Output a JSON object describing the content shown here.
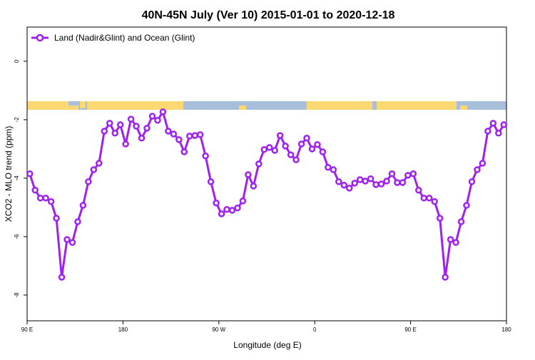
{
  "chart_data": {
    "type": "line",
    "title": "40N-45N July (Ver 10)   2015-01-01 to 2020-12-18",
    "x_label": "Longitude (deg E)",
    "y_label": "XCO2 - MLO trend (ppm)",
    "x": [
      92.5,
      97.5,
      102.5,
      107.5,
      112.5,
      117.5,
      122.5,
      127.5,
      132.5,
      137.5,
      142.5,
      147.5,
      152.5,
      157.5,
      162.5,
      167.5,
      172.5,
      177.5,
      182.5,
      187.5,
      192.5,
      197.5,
      202.5,
      207.5,
      212.5,
      217.5,
      222.5,
      227.5,
      232.5,
      237.5,
      242.5,
      247.5,
      252.5,
      257.5,
      262.5,
      267.5,
      272.5,
      277.5,
      282.5,
      287.5,
      292.5,
      297.5,
      302.5,
      307.5,
      312.5,
      317.5,
      322.5,
      327.5,
      332.5,
      337.5,
      342.5,
      347.5,
      352.5,
      357.5,
      362.5,
      367.5,
      372.5,
      377.5,
      382.5,
      387.5,
      392.5,
      397.5,
      402.5,
      407.5,
      412.5,
      417.5,
      422.5,
      427.5,
      432.5,
      437.5,
      442.5,
      447.5,
      452.5,
      457.5,
      462.5,
      467.5,
      472.5,
      477.5,
      482.5,
      487.5,
      492.5,
      497.5,
      502.5,
      507.5,
      512.5,
      517.5,
      522.5,
      527.5,
      532.5,
      537.5
    ],
    "series": [
      {
        "name": "Land (Nadir&Glint) and Ocean (Glint)",
        "color": "#a020f0",
        "values": [
          -3.85,
          -4.41,
          -4.68,
          -4.68,
          -4.8,
          -5.37,
          -7.39,
          -6.1,
          -6.2,
          -5.49,
          -4.93,
          -4.12,
          -3.71,
          -3.49,
          -2.39,
          -2.12,
          -2.46,
          -2.17,
          -2.83,
          -1.98,
          -2.22,
          -2.63,
          -2.29,
          -1.88,
          -2.02,
          -1.73,
          -2.39,
          -2.49,
          -2.68,
          -3.1,
          -2.56,
          -2.54,
          -2.51,
          -3.24,
          -4.12,
          -4.85,
          -5.22,
          -5.07,
          -5.1,
          -5.02,
          -4.78,
          -3.88,
          -4.27,
          -3.51,
          -3.02,
          -2.95,
          -3.05,
          -2.54,
          -2.9,
          -3.2,
          -3.37,
          -2.83,
          -2.63,
          -3.0,
          -2.85,
          -3.1,
          -3.63,
          -3.71,
          -4.12,
          -4.24,
          -4.34,
          -4.17,
          -4.05,
          -4.1,
          -4.02,
          -4.22,
          -4.2,
          -4.1,
          -3.85,
          -4.15,
          -4.15,
          -3.9,
          -3.85,
          -4.41,
          -4.68,
          -4.68,
          -4.8,
          -5.37,
          -7.39,
          -6.1,
          -6.2,
          -5.49,
          -4.93,
          -4.12,
          -3.71,
          -3.49,
          -2.39,
          -2.12,
          -2.46,
          -2.17
        ]
      }
    ],
    "xlim": [
      90,
      540
    ],
    "xticks": [
      {
        "value": 90,
        "label": "90 E"
      },
      180,
      {
        "value": 270,
        "label": "90 W"
      },
      {
        "value": 360,
        "label": "0"
      },
      {
        "value": 450,
        "label": "90 E"
      },
      {
        "value": 540,
        "label": "180"
      }
    ],
    "ylim": [
      -8.88,
      1.17
    ],
    "yticks": [
      0,
      -2,
      -4,
      -6,
      -8
    ],
    "legend": "top-left"
  }
}
